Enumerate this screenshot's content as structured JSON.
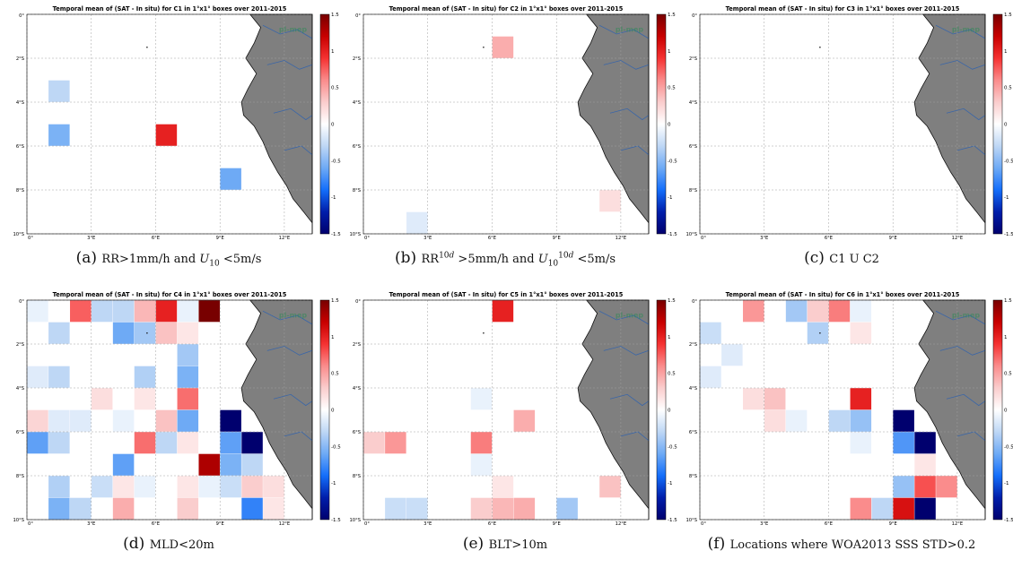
{
  "chart_data": [
    {
      "type": "heatmap",
      "title": "Temporal mean of (SAT - In situ) for C1 in 1°x1° boxes over 2011-2015",
      "caption_letter": "(a)",
      "caption_html": "RR&gt;1mm/h and <i>U</i><sub>10</sub> &lt;5m/s",
      "caption_text": "RR>1mm/h and U10 <5m/s",
      "x_ticks": [
        "0°",
        "3°E",
        "6°E",
        "9°E",
        "12°E"
      ],
      "y_ticks": [
        "0°",
        "2°S",
        "4°S",
        "6°S",
        "8°S",
        "10°S"
      ],
      "colorbar_ticks": [
        "1.5",
        "1",
        "0.5",
        "0",
        "-0.5",
        "-1",
        "-1.5"
      ],
      "vlim": [
        -1.5,
        1.5
      ],
      "xlim": [
        0,
        13.3
      ],
      "ylim": [
        0,
        10
      ],
      "grid": true,
      "watermark": "pl-mep",
      "cells": [
        {
          "lon": 1,
          "lat": 3,
          "value": -0.3
        },
        {
          "lon": 1,
          "lat": 5,
          "value": -0.55
        },
        {
          "lon": 6,
          "lat": 5,
          "value": 1.0
        },
        {
          "lon": 9,
          "lat": 7,
          "value": -0.6
        }
      ]
    },
    {
      "type": "heatmap",
      "title": "Temporal mean of (SAT - In situ) for C2 in 1°x1° boxes over 2011-2015",
      "caption_letter": "(b)",
      "caption_html": "RR<sup>10<i>d</i></sup> &gt;5mm/h and <i>U</i><sub>10</sub><sup>10<i>d</i></sup> &lt;5m/s",
      "caption_text": "RR10d >5mm/h and U10 10d <5m/s",
      "x_ticks": [
        "0°",
        "3°E",
        "6°E",
        "9°E",
        "12°E"
      ],
      "y_ticks": [
        "0°",
        "2°S",
        "4°S",
        "6°S",
        "8°S",
        "10°S"
      ],
      "colorbar_ticks": [
        "1.5",
        "1",
        "0.5",
        "0",
        "-0.5",
        "-1",
        "-1.5"
      ],
      "vlim": [
        -1.5,
        1.5
      ],
      "xlim": [
        0,
        13.3
      ],
      "ylim": [
        0,
        10
      ],
      "grid": true,
      "watermark": "pl-mep",
      "cells": [
        {
          "lon": 6,
          "lat": 1,
          "value": 0.45
        },
        {
          "lon": 11,
          "lat": 8,
          "value": 0.2
        },
        {
          "lon": 2,
          "lat": 9,
          "value": -0.15
        }
      ]
    },
    {
      "type": "heatmap",
      "title": "Temporal mean of (SAT - In situ) for C3 in 1°x1° boxes over 2011-2015",
      "caption_letter": "(c)",
      "caption_html": "C1 U C2",
      "caption_text": "C1 U C2",
      "x_ticks": [
        "0°",
        "3°E",
        "6°E",
        "9°E",
        "12°E"
      ],
      "y_ticks": [
        "0°",
        "2°S",
        "4°S",
        "6°S",
        "8°S",
        "10°S"
      ],
      "colorbar_ticks": [
        "1.5",
        "1",
        "0.5",
        "0",
        "-0.5",
        "-1",
        "-1.5"
      ],
      "vlim": [
        -1.5,
        1.5
      ],
      "xlim": [
        0,
        13.3
      ],
      "ylim": [
        0,
        10
      ],
      "grid": true,
      "watermark": "pl-mep",
      "cells": []
    },
    {
      "type": "heatmap",
      "title": "Temporal mean of (SAT - In situ) for C4 in 1°x1° boxes over 2011-2015",
      "caption_letter": "(d)",
      "caption_html": "MLD&lt;20m",
      "caption_text": "MLD<20m",
      "x_ticks": [
        "0°",
        "3°E",
        "6°E",
        "9°E",
        "12°E"
      ],
      "y_ticks": [
        "0°",
        "2°S",
        "4°S",
        "6°S",
        "8°S",
        "10°S"
      ],
      "colorbar_ticks": [
        "1.5",
        "1",
        "0.5",
        "0",
        "-0.5",
        "-1",
        "-1.5"
      ],
      "vlim": [
        -1.5,
        1.5
      ],
      "xlim": [
        0,
        13.3
      ],
      "ylim": [
        0,
        10
      ],
      "grid": true,
      "watermark": "pl-mep",
      "cells": [
        {
          "lon": 0,
          "lat": 0,
          "value": -0.1
        },
        {
          "lon": 2,
          "lat": 0,
          "value": 0.75
        },
        {
          "lon": 3,
          "lat": 0,
          "value": -0.3
        },
        {
          "lon": 4,
          "lat": 0,
          "value": -0.3
        },
        {
          "lon": 5,
          "lat": 0,
          "value": 0.4
        },
        {
          "lon": 6,
          "lat": 0,
          "value": 1.0
        },
        {
          "lon": 7,
          "lat": 0,
          "value": -0.1
        },
        {
          "lon": 8,
          "lat": 0,
          "value": 1.5
        },
        {
          "lon": 1,
          "lat": 1,
          "value": -0.3
        },
        {
          "lon": 4,
          "lat": 1,
          "value": -0.6
        },
        {
          "lon": 5,
          "lat": 1,
          "value": -0.4
        },
        {
          "lon": 6,
          "lat": 1,
          "value": 0.35
        },
        {
          "lon": 7,
          "lat": 1,
          "value": 0.15
        },
        {
          "lon": 7,
          "lat": 2,
          "value": -0.4
        },
        {
          "lon": 0,
          "lat": 3,
          "value": -0.15
        },
        {
          "lon": 1,
          "lat": 3,
          "value": -0.3
        },
        {
          "lon": 5,
          "lat": 3,
          "value": -0.35
        },
        {
          "lon": 7,
          "lat": 3,
          "value": -0.55
        },
        {
          "lon": 3,
          "lat": 4,
          "value": 0.2
        },
        {
          "lon": 5,
          "lat": 4,
          "value": 0.15
        },
        {
          "lon": 7,
          "lat": 4,
          "value": 0.7
        },
        {
          "lon": 0,
          "lat": 5,
          "value": 0.25
        },
        {
          "lon": 1,
          "lat": 5,
          "value": -0.15
        },
        {
          "lon": 2,
          "lat": 5,
          "value": -0.15
        },
        {
          "lon": 4,
          "lat": 5,
          "value": -0.1
        },
        {
          "lon": 6,
          "lat": 5,
          "value": 0.35
        },
        {
          "lon": 7,
          "lat": 5,
          "value": -0.6
        },
        {
          "lon": 9,
          "lat": 5,
          "value": -1.5
        },
        {
          "lon": 0,
          "lat": 6,
          "value": -0.65
        },
        {
          "lon": 1,
          "lat": 6,
          "value": -0.3
        },
        {
          "lon": 5,
          "lat": 6,
          "value": 0.7
        },
        {
          "lon": 6,
          "lat": 6,
          "value": -0.3
        },
        {
          "lon": 7,
          "lat": 6,
          "value": 0.15
        },
        {
          "lon": 9,
          "lat": 6,
          "value": -0.65
        },
        {
          "lon": 10,
          "lat": 6,
          "value": -1.5
        },
        {
          "lon": 4,
          "lat": 7,
          "value": -0.65
        },
        {
          "lon": 8,
          "lat": 7,
          "value": 1.3
        },
        {
          "lon": 9,
          "lat": 7,
          "value": -0.55
        },
        {
          "lon": 10,
          "lat": 7,
          "value": -0.3
        },
        {
          "lon": 1,
          "lat": 8,
          "value": -0.35
        },
        {
          "lon": 3,
          "lat": 8,
          "value": -0.25
        },
        {
          "lon": 4,
          "lat": 8,
          "value": 0.15
        },
        {
          "lon": 5,
          "lat": 8,
          "value": -0.1
        },
        {
          "lon": 7,
          "lat": 8,
          "value": 0.15
        },
        {
          "lon": 8,
          "lat": 8,
          "value": -0.1
        },
        {
          "lon": 9,
          "lat": 8,
          "value": -0.25
        },
        {
          "lon": 10,
          "lat": 8,
          "value": 0.3
        },
        {
          "lon": 11,
          "lat": 8,
          "value": 0.2
        },
        {
          "lon": 1,
          "lat": 9,
          "value": -0.55
        },
        {
          "lon": 2,
          "lat": 9,
          "value": -0.3
        },
        {
          "lon": 4,
          "lat": 9,
          "value": 0.45
        },
        {
          "lon": 7,
          "lat": 9,
          "value": 0.3
        },
        {
          "lon": 10,
          "lat": 9,
          "value": -0.8
        },
        {
          "lon": 11,
          "lat": 9,
          "value": 0.15
        }
      ]
    },
    {
      "type": "heatmap",
      "title": "Temporal mean of (SAT - In situ) for C5 in 1°x1° boxes over 2011-2015",
      "caption_letter": "(e)",
      "caption_html": "BLT&gt;10m",
      "caption_text": "BLT>10m",
      "x_ticks": [
        "0°",
        "3°E",
        "6°E",
        "9°E",
        "12°E"
      ],
      "y_ticks": [
        "0°",
        "2°S",
        "4°S",
        "6°S",
        "8°S",
        "10°S"
      ],
      "colorbar_ticks": [
        "1.5",
        "1",
        "0.5",
        "0",
        "-0.5",
        "-1",
        "-1.5"
      ],
      "vlim": [
        -1.5,
        1.5
      ],
      "xlim": [
        0,
        13.3
      ],
      "ylim": [
        0,
        10
      ],
      "grid": true,
      "watermark": "pl-mep",
      "cells": [
        {
          "lon": 6,
          "lat": 0,
          "value": 1.0
        },
        {
          "lon": 5,
          "lat": 4,
          "value": -0.1
        },
        {
          "lon": 7,
          "lat": 5,
          "value": 0.45
        },
        {
          "lon": 0,
          "lat": 6,
          "value": 0.3
        },
        {
          "lon": 1,
          "lat": 6,
          "value": 0.55
        },
        {
          "lon": 5,
          "lat": 6,
          "value": 0.65
        },
        {
          "lon": 5,
          "lat": 7,
          "value": -0.1
        },
        {
          "lon": 6,
          "lat": 8,
          "value": 0.15
        },
        {
          "lon": 11,
          "lat": 8,
          "value": 0.35
        },
        {
          "lon": 1,
          "lat": 9,
          "value": -0.25
        },
        {
          "lon": 2,
          "lat": 9,
          "value": -0.25
        },
        {
          "lon": 5,
          "lat": 9,
          "value": 0.3
        },
        {
          "lon": 6,
          "lat": 9,
          "value": 0.4
        },
        {
          "lon": 7,
          "lat": 9,
          "value": 0.45
        },
        {
          "lon": 9,
          "lat": 9,
          "value": -0.4
        }
      ]
    },
    {
      "type": "heatmap",
      "title": "Temporal mean of (SAT - In situ) for C6 in 1°x1° boxes over 2011-2015",
      "caption_letter": "(f)",
      "caption_html": "Locations where WOA2013 SSS STD&gt;0.2",
      "caption_text": "Locations where WOA2013 SSS STD>0.2",
      "x_ticks": [
        "0°",
        "3°E",
        "6°E",
        "9°E",
        "12°E"
      ],
      "y_ticks": [
        "0°",
        "2°S",
        "4°S",
        "6°S",
        "8°S",
        "10°S"
      ],
      "colorbar_ticks": [
        "1.5",
        "1",
        "0.5",
        "0",
        "-0.5",
        "-1",
        "-1.5"
      ],
      "vlim": [
        -1.5,
        1.5
      ],
      "xlim": [
        0,
        13.3
      ],
      "ylim": [
        0,
        10
      ],
      "grid": true,
      "watermark": "pl-mep",
      "cells": [
        {
          "lon": 2,
          "lat": 0,
          "value": 0.55
        },
        {
          "lon": 4,
          "lat": 0,
          "value": -0.4
        },
        {
          "lon": 5,
          "lat": 0,
          "value": 0.3
        },
        {
          "lon": 6,
          "lat": 0,
          "value": 0.65
        },
        {
          "lon": 7,
          "lat": 0,
          "value": -0.1
        },
        {
          "lon": 0,
          "lat": 1,
          "value": -0.25
        },
        {
          "lon": 5,
          "lat": 1,
          "value": -0.35
        },
        {
          "lon": 7,
          "lat": 1,
          "value": 0.15
        },
        {
          "lon": 1,
          "lat": 2,
          "value": -0.15
        },
        {
          "lon": 0,
          "lat": 3,
          "value": -0.15
        },
        {
          "lon": 7,
          "lat": 4,
          "value": 1.0
        },
        {
          "lon": 2,
          "lat": 4,
          "value": 0.2
        },
        {
          "lon": 3,
          "lat": 4,
          "value": 0.35
        },
        {
          "lon": 3,
          "lat": 5,
          "value": 0.2
        },
        {
          "lon": 4,
          "lat": 5,
          "value": -0.1
        },
        {
          "lon": 6,
          "lat": 5,
          "value": -0.3
        },
        {
          "lon": 7,
          "lat": 5,
          "value": -0.45
        },
        {
          "lon": 9,
          "lat": 5,
          "value": -1.5
        },
        {
          "lon": 7,
          "lat": 6,
          "value": -0.1
        },
        {
          "lon": 9,
          "lat": 6,
          "value": -0.7
        },
        {
          "lon": 10,
          "lat": 6,
          "value": -1.5
        },
        {
          "lon": 10,
          "lat": 7,
          "value": 0.15
        },
        {
          "lon": 9,
          "lat": 8,
          "value": -0.45
        },
        {
          "lon": 10,
          "lat": 8,
          "value": 0.8
        },
        {
          "lon": 11,
          "lat": 8,
          "value": 0.6
        },
        {
          "lon": 7,
          "lat": 9,
          "value": 0.6
        },
        {
          "lon": 8,
          "lat": 9,
          "value": -0.3
        },
        {
          "lon": 9,
          "lat": 9,
          "value": 1.1
        },
        {
          "lon": 10,
          "lat": 9,
          "value": -1.5
        }
      ]
    }
  ]
}
